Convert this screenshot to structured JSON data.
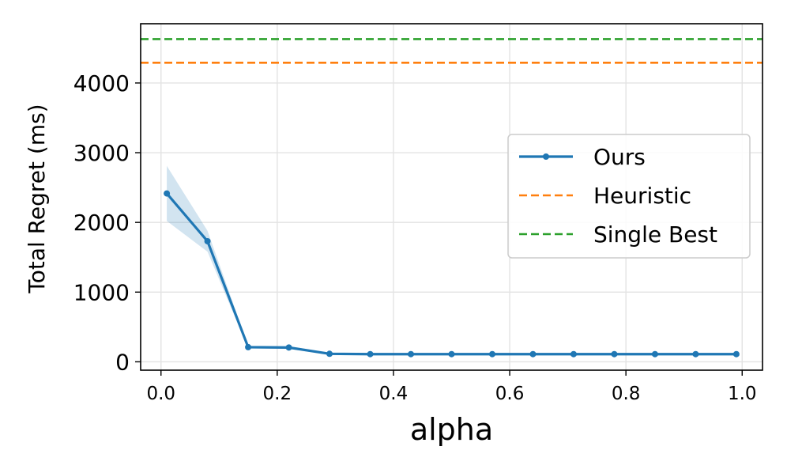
{
  "chart_data": {
    "type": "line",
    "title": "",
    "xlabel": "alpha",
    "ylabel": "Total Regret (ms)",
    "xlim": [
      -0.035,
      1.035
    ],
    "ylim": [
      -120,
      4850
    ],
    "xticks": [
      0.0,
      0.2,
      0.4,
      0.6,
      0.8,
      1.0
    ],
    "xtick_labels": [
      "0.0",
      "0.2",
      "0.4",
      "0.6",
      "0.8",
      "1.0"
    ],
    "yticks": [
      0,
      1000,
      2000,
      3000,
      4000
    ],
    "ytick_labels": [
      "0",
      "1000",
      "2000",
      "3000",
      "4000"
    ],
    "grid": true,
    "legend_position": "center-right",
    "series": [
      {
        "name": "Ours",
        "kind": "line-marker",
        "color": "#1f77b4",
        "x": [
          0.01,
          0.08,
          0.15,
          0.22,
          0.29,
          0.36,
          0.43,
          0.5,
          0.57,
          0.64,
          0.71,
          0.78,
          0.85,
          0.92,
          0.99
        ],
        "y": [
          2415,
          1730,
          210,
          205,
          115,
          110,
          110,
          110,
          110,
          110,
          110,
          110,
          110,
          110,
          110
        ],
        "y_upper": [
          2810,
          1880,
          230,
          225,
          130,
          125,
          125,
          125,
          125,
          125,
          125,
          125,
          125,
          125,
          125
        ],
        "y_lower": [
          2020,
          1580,
          190,
          185,
          100,
          95,
          95,
          95,
          95,
          95,
          95,
          95,
          95,
          95,
          95
        ]
      },
      {
        "name": "Heuristic",
        "kind": "hline-dashed",
        "color": "#ff7f0e",
        "y": 4290
      },
      {
        "name": "Single Best",
        "kind": "hline-dashed",
        "color": "#2ca02c",
        "y": 4630
      }
    ]
  }
}
